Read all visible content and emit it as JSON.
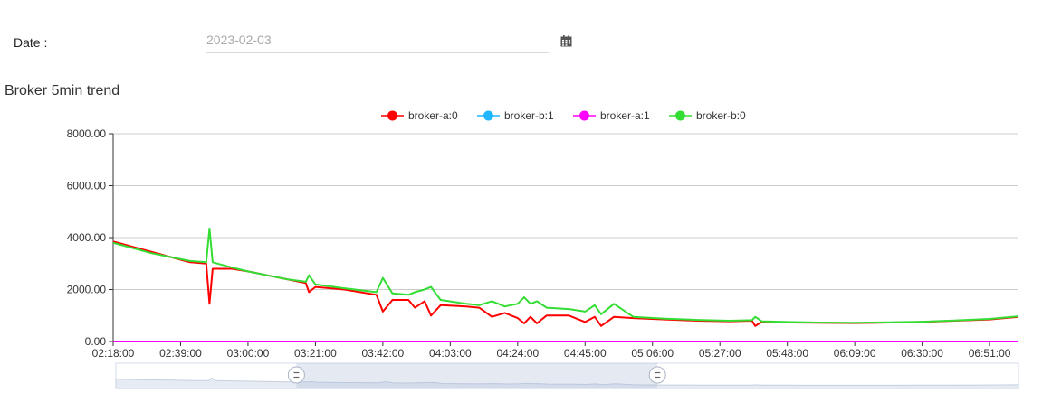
{
  "form": {
    "date_label": "Date :",
    "date_placeholder": "2023-02-03",
    "calendar_icon": "calendar-icon"
  },
  "chart_title": "Broker 5min trend",
  "chart_data": {
    "type": "line",
    "title": "Broker 5min trend",
    "xlabel": "",
    "ylabel": "",
    "ylim": [
      0,
      8000
    ],
    "y_ticks": [
      "0.00",
      "2000.00",
      "4000.00",
      "6000.00",
      "8000.00"
    ],
    "x_ticks": [
      "02:18:00",
      "02:39:00",
      "03:00:00",
      "03:21:00",
      "03:42:00",
      "04:03:00",
      "04:24:00",
      "04:45:00",
      "05:06:00",
      "05:27:00",
      "05:48:00",
      "06:09:00",
      "06:30:00",
      "06:51:00"
    ],
    "x_range": [
      "02:18:00",
      "07:00:00"
    ],
    "grid": "horizontal",
    "legend_position": "top-center",
    "series": [
      {
        "name": "broker-a:0",
        "color": "#ff0000",
        "points": [
          [
            "02:18:00",
            3850
          ],
          [
            "02:24:00",
            3650
          ],
          [
            "02:30:00",
            3450
          ],
          [
            "02:36:00",
            3250
          ],
          [
            "02:42:00",
            3050
          ],
          [
            "02:47:00",
            3000
          ],
          [
            "02:48:00",
            1450
          ],
          [
            "02:49:00",
            2800
          ],
          [
            "02:55:00",
            2800
          ],
          [
            "03:00:00",
            2700
          ],
          [
            "03:06:00",
            2550
          ],
          [
            "03:12:00",
            2400
          ],
          [
            "03:18:00",
            2250
          ],
          [
            "03:19:00",
            1900
          ],
          [
            "03:21:00",
            2100
          ],
          [
            "03:30:00",
            2000
          ],
          [
            "03:40:00",
            1800
          ],
          [
            "03:42:00",
            1150
          ],
          [
            "03:45:00",
            1600
          ],
          [
            "03:50:00",
            1600
          ],
          [
            "03:52:00",
            1300
          ],
          [
            "03:55:00",
            1550
          ],
          [
            "03:57:00",
            1000
          ],
          [
            "04:00:00",
            1400
          ],
          [
            "04:08:00",
            1350
          ],
          [
            "04:12:00",
            1300
          ],
          [
            "04:16:00",
            950
          ],
          [
            "04:20:00",
            1100
          ],
          [
            "04:24:00",
            900
          ],
          [
            "04:26:00",
            700
          ],
          [
            "04:28:00",
            950
          ],
          [
            "04:30:00",
            700
          ],
          [
            "04:33:00",
            1000
          ],
          [
            "04:40:00",
            1000
          ],
          [
            "04:45:00",
            750
          ],
          [
            "04:48:00",
            950
          ],
          [
            "04:50:00",
            600
          ],
          [
            "04:54:00",
            950
          ],
          [
            "05:00:00",
            900
          ],
          [
            "05:10:00",
            850
          ],
          [
            "05:20:00",
            800
          ],
          [
            "05:30:00",
            780
          ],
          [
            "05:37:00",
            800
          ],
          [
            "05:38:00",
            600
          ],
          [
            "05:40:00",
            750
          ],
          [
            "05:48:00",
            730
          ],
          [
            "05:58:00",
            720
          ],
          [
            "06:09:00",
            710
          ],
          [
            "06:20:00",
            730
          ],
          [
            "06:30:00",
            750
          ],
          [
            "06:40:00",
            800
          ],
          [
            "06:51:00",
            850
          ],
          [
            "07:00:00",
            950
          ]
        ]
      },
      {
        "name": "broker-b:1",
        "color": "#1fb6ff",
        "points": [
          [
            "02:18:00",
            0
          ],
          [
            "07:00:00",
            0
          ]
        ]
      },
      {
        "name": "broker-a:1",
        "color": "#ff00ff",
        "points": [
          [
            "02:18:00",
            0
          ],
          [
            "07:00:00",
            0
          ]
        ]
      },
      {
        "name": "broker-b:0",
        "color": "#33dd33",
        "points": [
          [
            "02:18:00",
            3800
          ],
          [
            "02:24:00",
            3600
          ],
          [
            "02:30:00",
            3400
          ],
          [
            "02:36:00",
            3250
          ],
          [
            "02:42:00",
            3100
          ],
          [
            "02:47:00",
            3050
          ],
          [
            "02:48:00",
            4350
          ],
          [
            "02:49:00",
            3050
          ],
          [
            "02:55:00",
            2850
          ],
          [
            "03:00:00",
            2700
          ],
          [
            "03:06:00",
            2550
          ],
          [
            "03:12:00",
            2400
          ],
          [
            "03:18:00",
            2300
          ],
          [
            "03:19:00",
            2550
          ],
          [
            "03:21:00",
            2200
          ],
          [
            "03:30:00",
            2050
          ],
          [
            "03:40:00",
            1900
          ],
          [
            "03:42:00",
            2450
          ],
          [
            "03:45:00",
            1850
          ],
          [
            "03:50:00",
            1800
          ],
          [
            "03:52:00",
            1900
          ],
          [
            "03:55:00",
            2000
          ],
          [
            "03:57:00",
            2100
          ],
          [
            "04:00:00",
            1600
          ],
          [
            "04:08:00",
            1450
          ],
          [
            "04:12:00",
            1400
          ],
          [
            "04:16:00",
            1550
          ],
          [
            "04:20:00",
            1350
          ],
          [
            "04:24:00",
            1450
          ],
          [
            "04:26:00",
            1700
          ],
          [
            "04:28:00",
            1450
          ],
          [
            "04:30:00",
            1550
          ],
          [
            "04:33:00",
            1300
          ],
          [
            "04:40:00",
            1250
          ],
          [
            "04:45:00",
            1150
          ],
          [
            "04:48:00",
            1400
          ],
          [
            "04:50:00",
            1050
          ],
          [
            "04:54:00",
            1450
          ],
          [
            "05:00:00",
            950
          ],
          [
            "05:10:00",
            880
          ],
          [
            "05:20:00",
            830
          ],
          [
            "05:30:00",
            800
          ],
          [
            "05:37:00",
            820
          ],
          [
            "05:38:00",
            950
          ],
          [
            "05:40:00",
            780
          ],
          [
            "05:48:00",
            750
          ],
          [
            "05:58:00",
            730
          ],
          [
            "06:09:00",
            720
          ],
          [
            "06:20:00",
            740
          ],
          [
            "06:30:00",
            760
          ],
          [
            "06:40:00",
            810
          ],
          [
            "06:51:00",
            870
          ],
          [
            "07:00:00",
            970
          ]
        ]
      }
    ],
    "data_zoom": {
      "start": 0.2,
      "end": 0.6
    }
  }
}
